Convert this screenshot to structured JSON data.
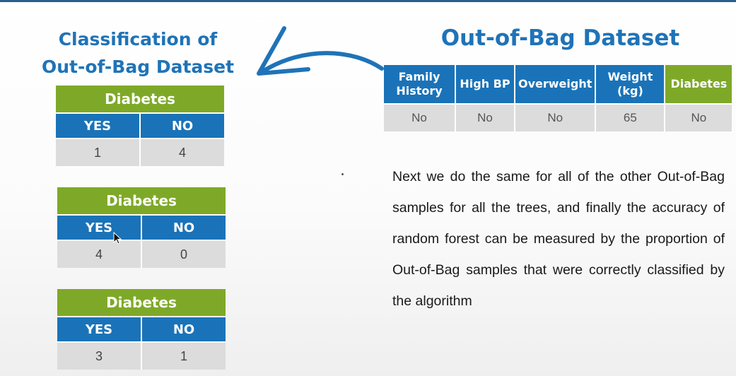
{
  "left_title": {
    "line1": "Classification of",
    "line2": "Out-of-Bag Dataset"
  },
  "right_title": "Out-of-Bag Dataset",
  "mini_tables": [
    {
      "header": "Diabetes",
      "yes_label": "YES",
      "no_label": "NO",
      "yes_value": "1",
      "no_value": "4"
    },
    {
      "header": "Diabetes",
      "yes_label": "YES",
      "no_label": "NO",
      "yes_value": "4",
      "no_value": "0"
    },
    {
      "header": "Diabetes",
      "yes_label": "YES",
      "no_label": "NO",
      "yes_value": "3",
      "no_value": "1"
    }
  ],
  "oob_table": {
    "columns": [
      "Family History",
      "High BP",
      "Overweight",
      "Weight (kg)",
      "Diabetes"
    ],
    "row": [
      "No",
      "No",
      "No",
      "65",
      "No"
    ]
  },
  "paragraph": "Next we do the same for all of the other Out-of-Bag samples for all the trees, and finally the accuracy of random forest can be measured by the proportion of Out-of-Bag samples that were correctly classified by the algorithm",
  "colors": {
    "blue": "#1a73b8",
    "green": "#7ea928",
    "title_blue": "#1f73b7",
    "cell_gray": "#dcdcdc"
  }
}
